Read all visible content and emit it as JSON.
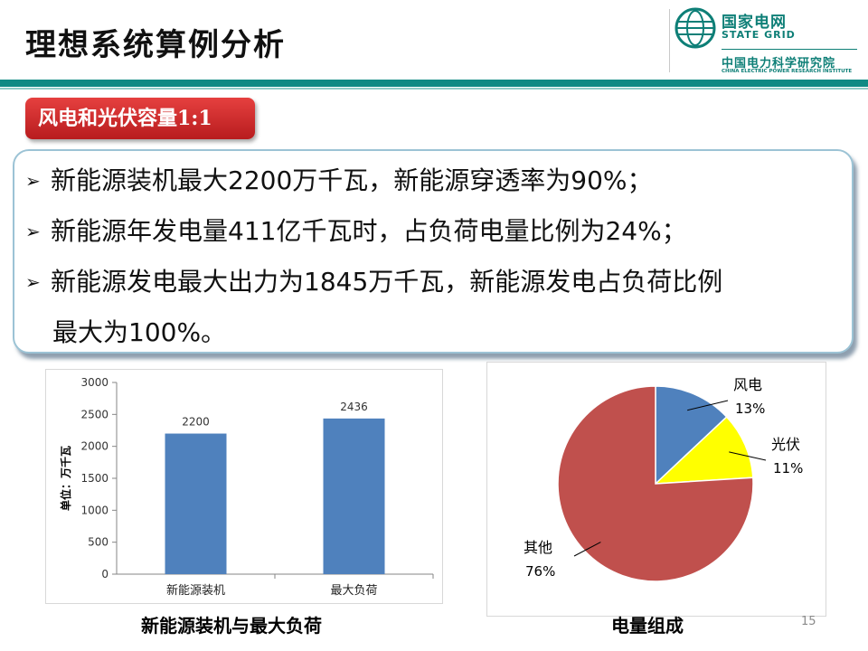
{
  "slide": {
    "title": "理想系统算例分析",
    "page_number": "15"
  },
  "logo": {
    "name_cn": "国家电网",
    "name_en": "STATE GRID",
    "institute_cn": "中国电力科学研究院",
    "institute_en": "CHINA ELECTRIC POWER RESEARCH INSTITUTE"
  },
  "scenario_tag": "风电和光伏容量1:1",
  "bullets": [
    "新能源装机最大2200万千瓦，新能源穿透率为90%；",
    "新能源年发电量411亿千瓦时，占负荷电量比例为24%；",
    "新能源发电最大出力为1845万千瓦，新能源发电占负荷比例",
    "最大为100%。"
  ],
  "bullet_marker": "➢",
  "captions": {
    "left": "新能源装机与最大负荷",
    "right": "电量组成"
  },
  "colors": {
    "teal": "#0f8a84",
    "tag_red": "#d12d2e",
    "bar_blue": "#4f81bd",
    "pie_blue": "#4f81bd",
    "pie_yellow": "#ffff00",
    "pie_red": "#c0504d"
  },
  "chart_data": [
    {
      "type": "bar",
      "categories": [
        "新能源装机",
        "最大负荷"
      ],
      "values": [
        2200,
        2436
      ],
      "ylabel": "单位：万千瓦",
      "ylim": [
        0,
        3000
      ],
      "yticks": [
        0,
        500,
        1000,
        1500,
        2000,
        2500,
        3000
      ],
      "grid": false,
      "legend": "none"
    },
    {
      "type": "pie",
      "slices": [
        {
          "label": "风电",
          "value": 13,
          "pct": "13%"
        },
        {
          "label": "光伏",
          "value": 11,
          "pct": "11%"
        },
        {
          "label": "其他",
          "value": 76,
          "pct": "76%"
        }
      ]
    }
  ]
}
